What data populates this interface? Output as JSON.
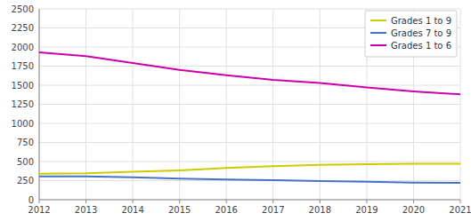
{
  "chart_data": {
    "type": "line",
    "x": [
      2012,
      2013,
      2014,
      2015,
      2016,
      2017,
      2018,
      2019,
      2020,
      2021
    ],
    "series": [
      {
        "name": "Grades 1 to 9",
        "color": "#cccc00",
        "values": [
          340,
          345,
          365,
          385,
          415,
          440,
          455,
          465,
          470,
          470
        ]
      },
      {
        "name": "Grades 7 to 9",
        "color": "#4472c4",
        "values": [
          305,
          305,
          295,
          275,
          265,
          255,
          245,
          235,
          225,
          220
        ]
      },
      {
        "name": "Grades 1 to 6",
        "color": "#cc00aa",
        "values": [
          1930,
          1880,
          1790,
          1700,
          1630,
          1570,
          1530,
          1470,
          1420,
          1380
        ]
      }
    ],
    "xlim": [
      2012,
      2021
    ],
    "xticks": [
      2012,
      2013,
      2014,
      2015,
      2016,
      2017,
      2018,
      2019,
      2020,
      2021
    ],
    "ylim": [
      0,
      2500
    ],
    "yticks": [
      0,
      250,
      500,
      750,
      1000,
      1250,
      1500,
      1750,
      2000,
      2250,
      2500
    ],
    "grid": true,
    "legend": "upper right"
  }
}
